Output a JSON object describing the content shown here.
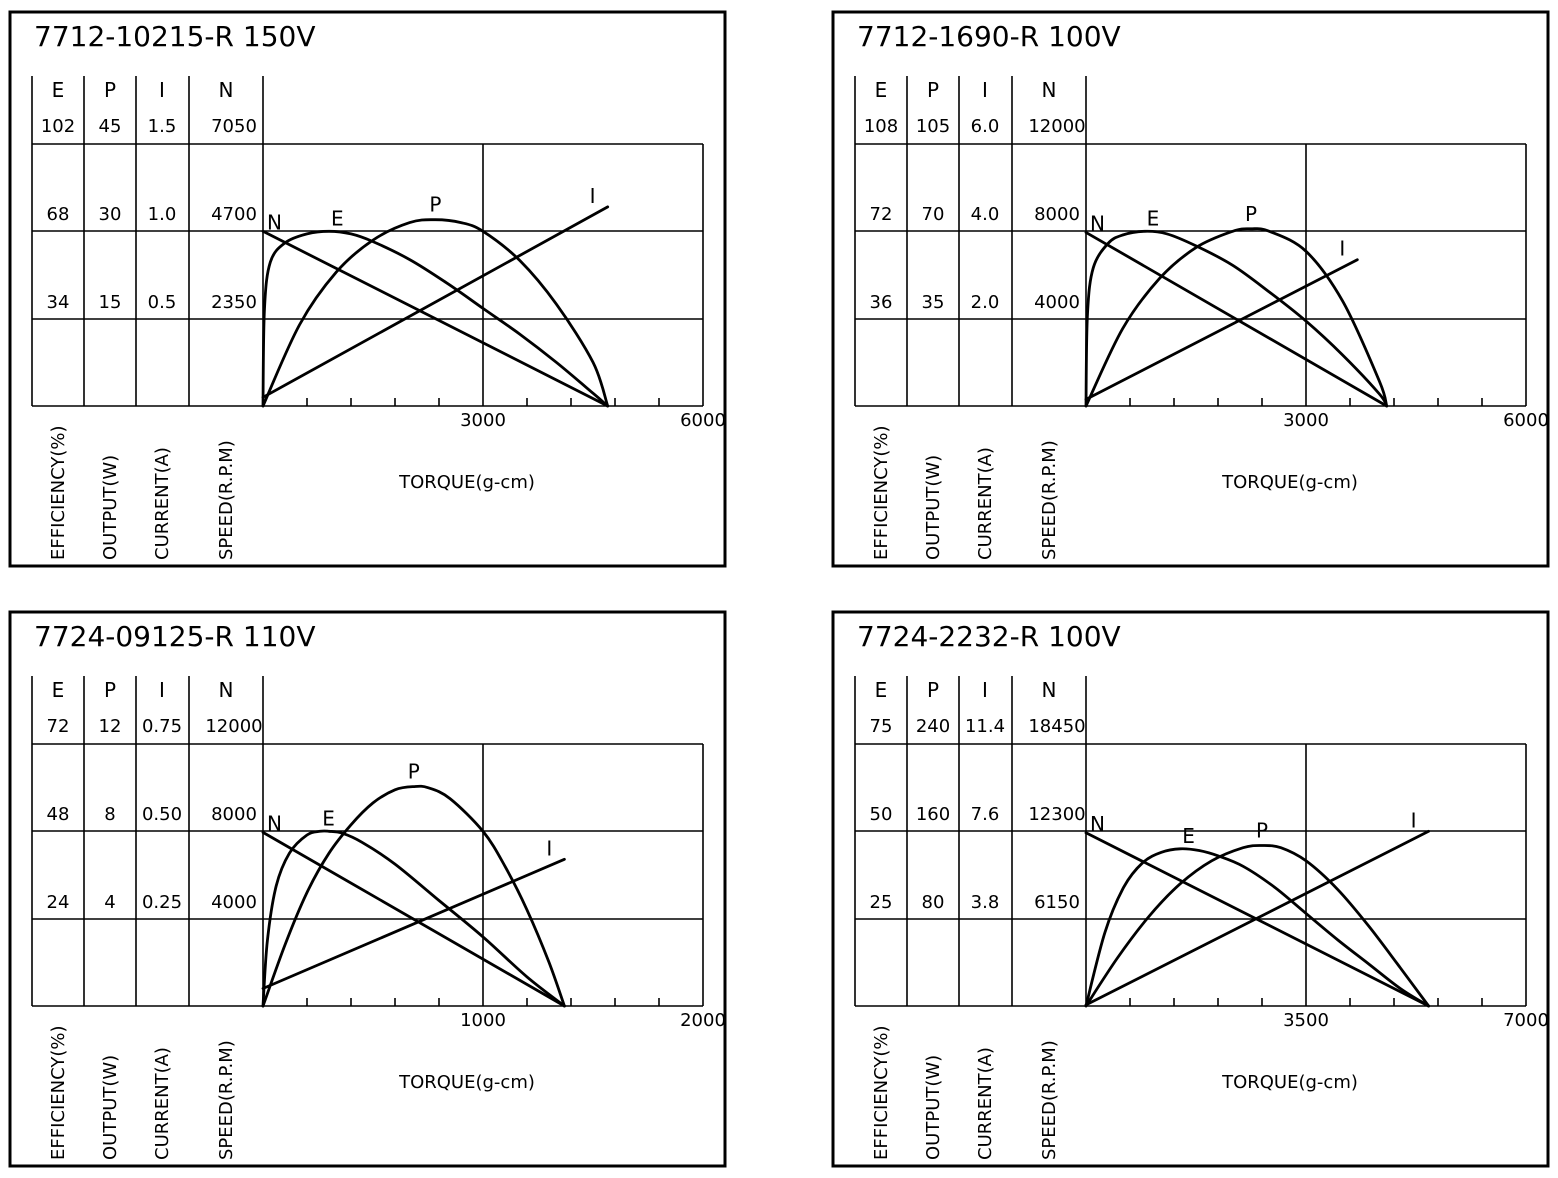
{
  "chart_data": [
    {
      "type": "line",
      "title": "7712-10215-R   150V",
      "column_headers": [
        "E",
        "P",
        "I",
        "N"
      ],
      "column_labels": [
        "EFFICIENCY(%)",
        "OUTPUT(W)",
        "CURRENT(A)",
        "SPEED(R.P.M)"
      ],
      "column_ticks": [
        [
          "102",
          "68",
          "34"
        ],
        [
          "45",
          "30",
          "15"
        ],
        [
          "1.5",
          "1.0",
          "0.5"
        ],
        [
          "7050",
          "4700",
          "2350"
        ]
      ],
      "xlabel": "TORQUE(g-cm)",
      "x_tick_labels": [
        "3000",
        "6000"
      ],
      "xlim": [
        0,
        6000
      ],
      "series": [
        {
          "name": "N",
          "unit": "R.P.M",
          "ymax": 7050,
          "x": [
            0,
            4700
          ],
          "y": [
            4700,
            0
          ]
        },
        {
          "name": "I",
          "unit": "A",
          "ymax": 1.5,
          "x": [
            0,
            4700
          ],
          "y": [
            0.05,
            1.14
          ]
        },
        {
          "name": "P",
          "unit": "W",
          "ymax": 45,
          "x": [
            0,
            500,
            1000,
            1500,
            2000,
            2350,
            2700,
            3000,
            3500,
            4000,
            4500,
            4700
          ],
          "y": [
            0,
            14,
            23,
            28.5,
            31.5,
            32,
            31.5,
            30,
            25,
            17.5,
            7.5,
            0
          ]
        },
        {
          "name": "E",
          "unit": "%",
          "ymax": 102,
          "x": [
            0,
            20,
            100,
            300,
            600,
            900,
            1200,
            1500,
            2000,
            2500,
            3000,
            3500,
            4000,
            4500,
            4700
          ],
          "y": [
            0,
            38,
            56,
            63.5,
            67,
            68,
            67,
            64,
            57,
            48,
            38,
            28,
            17,
            5,
            0
          ]
        }
      ]
    },
    {
      "type": "line",
      "title": "7712-1690-R   100V",
      "column_headers": [
        "E",
        "P",
        "I",
        "N"
      ],
      "column_labels": [
        "EFFICIENCY(%)",
        "OUTPUT(W)",
        "CURRENT(A)",
        "SPEED(R.P.M)"
      ],
      "column_ticks": [
        [
          "108",
          "72",
          "36"
        ],
        [
          "105",
          "70",
          "35"
        ],
        [
          "6.0",
          "4.0",
          "2.0"
        ],
        [
          "12000",
          "8000",
          "4000"
        ]
      ],
      "xlabel": "TORQUE(g-cm)",
      "x_tick_labels": [
        "3000",
        "6000"
      ],
      "xlim": [
        0,
        6000
      ],
      "series": [
        {
          "name": "N",
          "unit": "R.P.M",
          "ymax": 12000,
          "x": [
            0,
            4100
          ],
          "y": [
            7950,
            0
          ]
        },
        {
          "name": "I",
          "unit": "A",
          "ymax": 6.0,
          "x": [
            0,
            3700
          ],
          "y": [
            0.15,
            3.35
          ]
        },
        {
          "name": "P",
          "unit": "W",
          "ymax": 105,
          "x": [
            0,
            500,
            1000,
            1500,
            2000,
            2250,
            2500,
            3000,
            3500,
            4000,
            4100
          ],
          "y": [
            0,
            31,
            51,
            63.5,
            70,
            71,
            70,
            62,
            42,
            10,
            0
          ]
        },
        {
          "name": "E",
          "unit": "%",
          "ymax": 108,
          "x": [
            0,
            20,
            100,
            300,
            500,
            800,
            1100,
            1500,
            2000,
            2500,
            3000,
            3500,
            4000,
            4100
          ],
          "y": [
            0,
            38,
            57,
            67,
            70.5,
            72,
            71,
            66,
            58,
            47,
            35,
            21,
            5,
            0
          ]
        }
      ]
    },
    {
      "type": "line",
      "title": "7724-09125-R   110V",
      "column_headers": [
        "E",
        "P",
        "I",
        "N"
      ],
      "column_labels": [
        "EFFICIENCY(%)",
        "OUTPUT(W)",
        "CURRENT(A)",
        "SPEED(R.P.M)"
      ],
      "column_ticks": [
        [
          "72",
          "48",
          "24"
        ],
        [
          "12",
          "8",
          "4"
        ],
        [
          "0.75",
          "0.50",
          "0.25"
        ],
        [
          "12000",
          "8000",
          "4000"
        ]
      ],
      "xlabel": "TORQUE(g-cm)",
      "x_tick_labels": [
        "1000",
        "2000"
      ],
      "xlim": [
        0,
        2000
      ],
      "series": [
        {
          "name": "N",
          "unit": "R.P.M",
          "ymax": 12000,
          "x": [
            0,
            1370
          ],
          "y": [
            7950,
            0
          ]
        },
        {
          "name": "I",
          "unit": "A",
          "ymax": 0.75,
          "x": [
            0,
            1370
          ],
          "y": [
            0.05,
            0.42
          ]
        },
        {
          "name": "P",
          "unit": "W",
          "ymax": 12,
          "x": [
            0,
            100,
            200,
            300,
            400,
            500,
            600,
            685,
            750,
            850,
            1000,
            1100,
            1200,
            1300,
            1370
          ],
          "y": [
            0,
            2.8,
            5.2,
            7.0,
            8.3,
            9.3,
            9.9,
            10.05,
            10.0,
            9.5,
            8.0,
            6.4,
            4.4,
            2.0,
            0
          ]
        },
        {
          "name": "E",
          "unit": "%",
          "ymax": 72,
          "x": [
            0,
            20,
            60,
            120,
            200,
            260,
            300,
            360,
            450,
            600,
            800,
            1000,
            1200,
            1370
          ],
          "y": [
            0,
            18,
            33,
            42,
            47,
            48,
            48,
            47.5,
            45,
            39,
            29,
            19,
            8,
            0
          ]
        }
      ]
    },
    {
      "type": "line",
      "title": "7724-2232-R   100V",
      "column_headers": [
        "E",
        "P",
        "I",
        "N"
      ],
      "column_labels": [
        "EFFICIENCY(%)",
        "OUTPUT(W)",
        "CURRENT(A)",
        "SPEED(R.P.M)"
      ],
      "column_ticks": [
        [
          "75",
          "50",
          "25"
        ],
        [
          "240",
          "160",
          "80"
        ],
        [
          "11.4",
          "7.6",
          "3.8"
        ],
        [
          "18450",
          "12300",
          "6150"
        ]
      ],
      "xlabel": "TORQUE(g-cm)",
      "x_tick_labels": [
        "3500",
        "7000"
      ],
      "xlim": [
        0,
        7000
      ],
      "series": [
        {
          "name": "N",
          "unit": "R.P.M",
          "ymax": 18450,
          "x": [
            0,
            5450
          ],
          "y": [
            12200,
            0
          ]
        },
        {
          "name": "I",
          "unit": "A",
          "ymax": 11.4,
          "x": [
            0,
            5450
          ],
          "y": [
            0.05,
            7.6
          ]
        },
        {
          "name": "P",
          "unit": "W",
          "ymax": 240,
          "x": [
            0,
            500,
            1000,
            1500,
            2000,
            2500,
            2800,
            3100,
            3500,
            4000,
            4500,
            5000,
            5450
          ],
          "y": [
            0,
            44,
            82,
            112,
            133,
            145,
            147,
            145,
            133,
            107,
            73,
            35,
            0
          ]
        },
        {
          "name": "E",
          "unit": "%",
          "ymax": 75,
          "x": [
            0,
            300,
            600,
            900,
            1200,
            1500,
            1800,
            2100,
            2500,
            3000,
            3500,
            4000,
            4500,
            5000,
            5450
          ],
          "y": [
            0,
            21,
            34,
            41,
            44,
            45,
            44.5,
            43,
            40,
            34,
            26.5,
            19,
            12,
            5,
            0
          ]
        }
      ]
    }
  ]
}
